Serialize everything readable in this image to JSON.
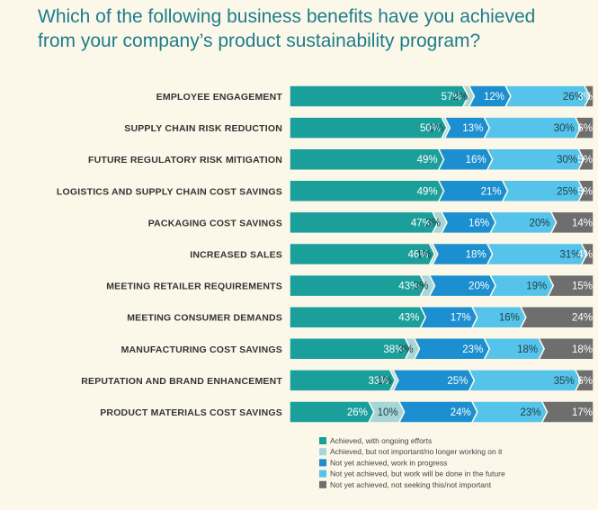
{
  "chart_data": {
    "type": "stacked-arrow-bar",
    "title_lines": [
      "Which of the following business benefits have you achieved",
      "from your company’s product sustainability program?"
    ],
    "categories": [
      "EMPLOYEE ENGAGEMENT",
      "SUPPLY CHAIN RISK REDUCTION",
      "FUTURE REGULATORY RISK MITIGATION",
      "LOGISTICS AND SUPPLY CHAIN COST SAVINGS",
      "PACKAGING COST SAVINGS",
      "INCREASED SALES",
      "MEETING RETAILER REQUIREMENTS",
      "MEETING CONSUMER DEMANDS",
      "MANUFACTURING COST SAVINGS",
      "REPUTATION AND BRAND ENHANCEMENT",
      "PRODUCT MATERIALS COST SAVINGS"
    ],
    "series": [
      {
        "name": "Achieved, with ongoing efforts",
        "color": "#1a9f9b",
        "values": [
          57,
          50,
          49,
          49,
          47,
          46,
          43,
          43,
          38,
          33,
          26
        ],
        "value_labels": [
          "57%",
          "50%",
          "49%",
          "49%",
          "47%",
          "46%",
          "43%",
          "43%",
          "38%",
          "33%",
          "26%"
        ]
      },
      {
        "name": "Achieved, but not important/no longer working on it",
        "color": "#a6d6d8",
        "values": [
          2,
          1,
          null,
          null,
          3,
          1,
          3,
          null,
          3,
          1,
          10
        ],
        "value_labels": [
          "2%",
          "1%",
          null,
          null,
          "3%",
          "1%",
          "3%",
          null,
          "3%",
          "1%",
          "10%"
        ]
      },
      {
        "name": "Not yet achieved, work in progress",
        "color": "#1b8fcf",
        "values": [
          12,
          13,
          16,
          21,
          16,
          18,
          20,
          17,
          23,
          25,
          24
        ],
        "value_labels": [
          "12%",
          "13%",
          "16%",
          "21%",
          "16%",
          "18%",
          "20%",
          "17%",
          "23%",
          "25%",
          "24%"
        ]
      },
      {
        "name": "Not yet achieved, but work will be done in the future",
        "color": "#55c3ea",
        "values": [
          26,
          30,
          30,
          25,
          20,
          31,
          19,
          16,
          18,
          35,
          23
        ],
        "value_labels": [
          "26%",
          "30%",
          "30%",
          "25%",
          "20%",
          "31%",
          "19%",
          "16%",
          "18%",
          "35%",
          "23%"
        ]
      },
      {
        "name": "Not yet achieved, not seeking this/not important",
        "color": "#6e6e6e",
        "values": [
          3,
          6,
          5,
          5,
          14,
          4,
          15,
          24,
          18,
          6,
          17
        ],
        "value_labels": [
          "3%",
          "6%",
          "5%",
          "5%",
          "14%",
          "4%",
          "15%",
          "24%",
          "18%",
          "6%",
          "17%"
        ]
      }
    ]
  }
}
